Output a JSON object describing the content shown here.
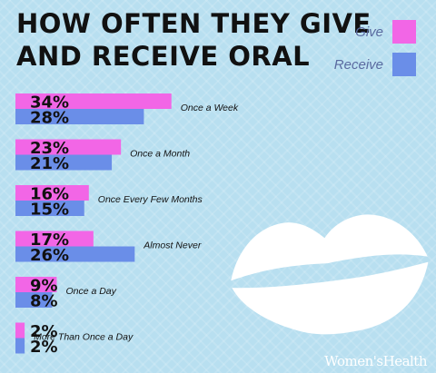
{
  "title": {
    "line1": "HOW OFTEN THEY GIVE",
    "line2": "AND RECEIVE ORAL"
  },
  "legend": [
    {
      "label": "Give",
      "color": "#f266e6"
    },
    {
      "label": "Receive",
      "color": "#6a8ee8"
    }
  ],
  "watermark": "Women'sHealth",
  "decoration": {
    "icon": "lips-kiss-icon",
    "color": "#ffffff"
  },
  "chart_data": {
    "type": "bar",
    "orientation": "horizontal",
    "categories": [
      "Once a Week",
      "Once a Month",
      "Once Every Few Months",
      "Almost Never",
      "Once a Day",
      "More Than Once a Day"
    ],
    "series": [
      {
        "name": "Give",
        "color": "#f266e6",
        "values": [
          34,
          23,
          16,
          17,
          9,
          2
        ],
        "labels": [
          "34%",
          "23%",
          "16%",
          "17%",
          "9%",
          "2%"
        ]
      },
      {
        "name": "Receive",
        "color": "#6a8ee8",
        "values": [
          28,
          21,
          15,
          26,
          8,
          2
        ],
        "labels": [
          "28%",
          "21%",
          "15%",
          "26%",
          "8%",
          "2%"
        ]
      }
    ],
    "unit": "%",
    "legend_position": "top-right",
    "grid": false
  }
}
